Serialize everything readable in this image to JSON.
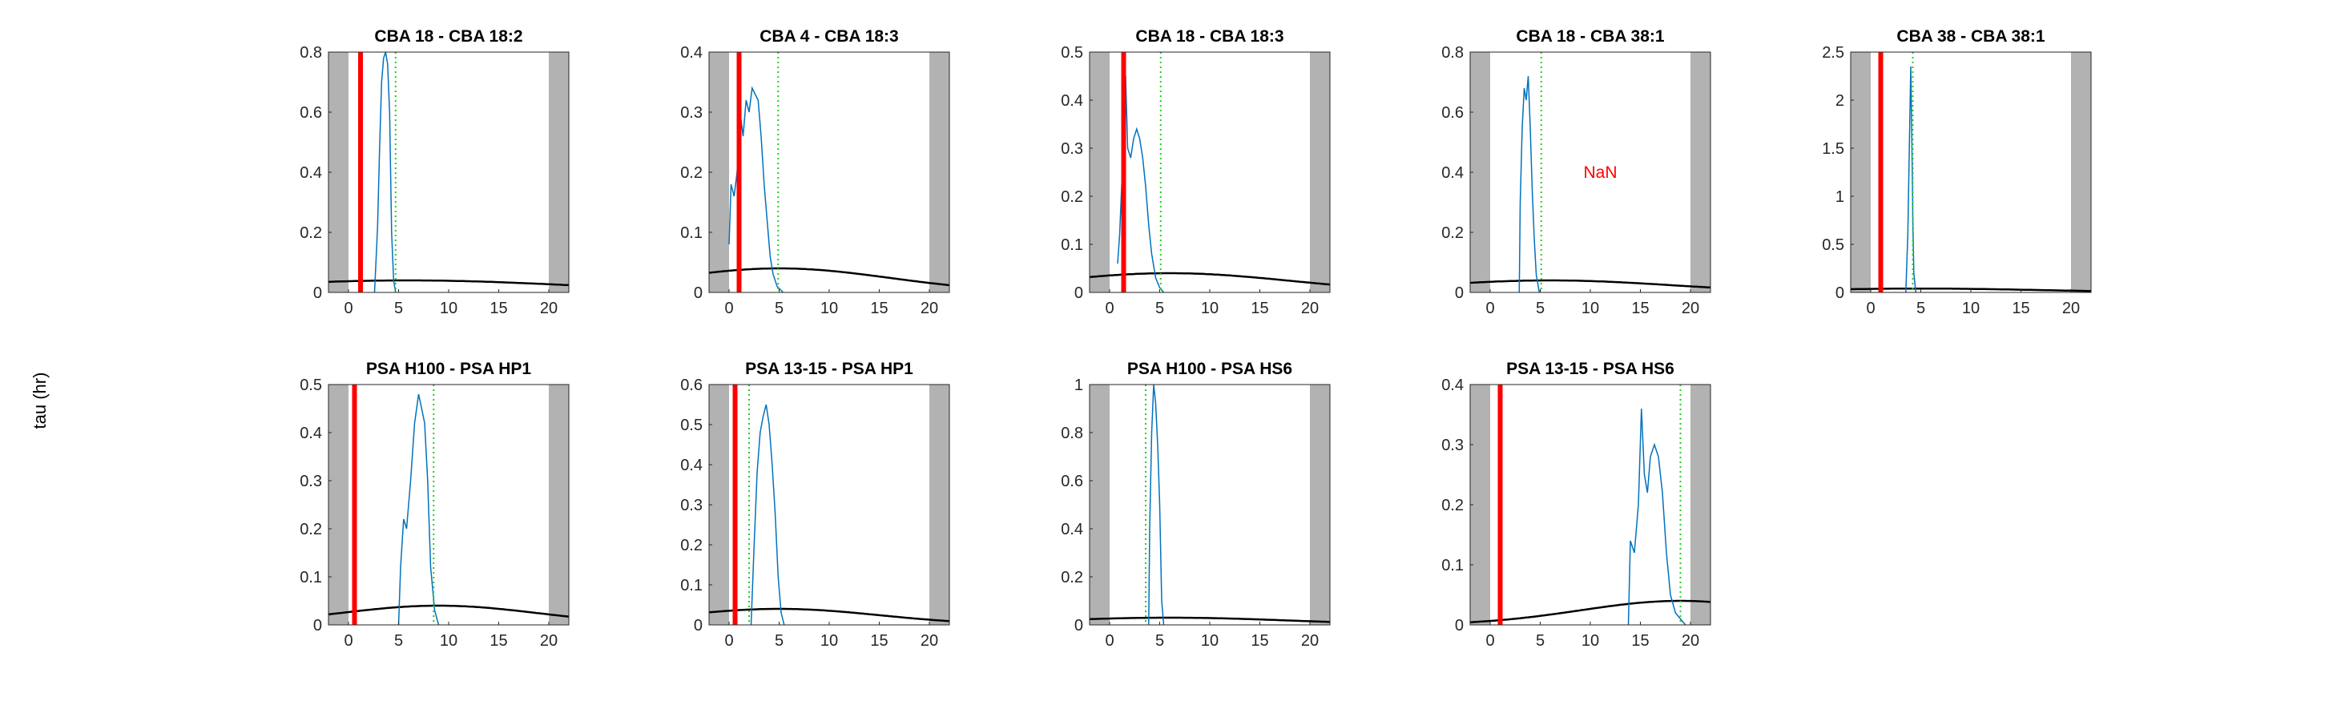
{
  "figure": {
    "ylabel": "tau (hr)"
  },
  "chart_data": [
    {
      "type": "line",
      "title": "CBA 18 - CBA 18:2",
      "xlim": [
        -2,
        22
      ],
      "ylim": [
        0,
        0.8
      ],
      "xticks": [
        0,
        5,
        10,
        15,
        20
      ],
      "xtick_labels": [
        "0",
        "5",
        "10",
        "15",
        "20"
      ],
      "yticks": [
        0,
        0.2,
        0.4,
        0.6,
        0.8
      ],
      "ytick_labels": [
        "0",
        "0.2",
        "0.4",
        "0.6",
        "0.8"
      ],
      "shaded_x": [
        [
          -2,
          0
        ],
        [
          20,
          22
        ]
      ],
      "red_line_x": 1.2,
      "green_dotted_x": 4.7,
      "annotation": "",
      "curve_points": [
        [
          2.6,
          0
        ],
        [
          2.9,
          0.22
        ],
        [
          3.1,
          0.48
        ],
        [
          3.3,
          0.7
        ],
        [
          3.5,
          0.78
        ],
        [
          3.7,
          0.8
        ],
        [
          3.9,
          0.76
        ],
        [
          4.1,
          0.6
        ],
        [
          4.3,
          0.2
        ],
        [
          4.5,
          0.04
        ],
        [
          4.7,
          0
        ]
      ],
      "black_curve": {
        "center": 6,
        "peak": 0.04,
        "sigma": 16
      }
    },
    {
      "type": "line",
      "title": "CBA 4 - CBA 18:3",
      "xlim": [
        -2,
        22
      ],
      "ylim": [
        0,
        0.4
      ],
      "xticks": [
        0,
        5,
        10,
        15,
        20
      ],
      "xtick_labels": [
        "0",
        "5",
        "10",
        "15",
        "20"
      ],
      "yticks": [
        0,
        0.1,
        0.2,
        0.3,
        0.4
      ],
      "ytick_labels": [
        "0",
        "0.1",
        "0.2",
        "0.3",
        "0.4"
      ],
      "shaded_x": [
        [
          -2,
          0
        ],
        [
          20,
          22
        ]
      ],
      "red_line_x": 1.0,
      "green_dotted_x": 4.9,
      "annotation": "",
      "curve_points": [
        [
          0,
          0.08
        ],
        [
          0.2,
          0.18
        ],
        [
          0.5,
          0.16
        ],
        [
          0.8,
          0.2
        ],
        [
          1.1,
          0.3
        ],
        [
          1.4,
          0.26
        ],
        [
          1.7,
          0.32
        ],
        [
          2.0,
          0.3
        ],
        [
          2.3,
          0.34
        ],
        [
          2.6,
          0.33
        ],
        [
          2.9,
          0.32
        ],
        [
          3.2,
          0.26
        ],
        [
          3.5,
          0.18
        ],
        [
          3.8,
          0.12
        ],
        [
          4.1,
          0.06
        ],
        [
          4.4,
          0.03
        ],
        [
          4.8,
          0.01
        ],
        [
          5.4,
          0
        ]
      ],
      "black_curve": {
        "center": 5,
        "peak": 0.04,
        "sigma": 11
      }
    },
    {
      "type": "line",
      "title": "CBA 18 - CBA 18:3",
      "xlim": [
        -2,
        22
      ],
      "ylim": [
        0,
        0.5
      ],
      "xticks": [
        0,
        5,
        10,
        15,
        20
      ],
      "xtick_labels": [
        "0",
        "5",
        "10",
        "15",
        "20"
      ],
      "yticks": [
        0,
        0.1,
        0.2,
        0.3,
        0.4,
        0.5
      ],
      "ytick_labels": [
        "0",
        "0.1",
        "0.2",
        "0.3",
        "0.4",
        "0.5"
      ],
      "shaded_x": [
        [
          -2,
          0
        ],
        [
          20,
          22
        ]
      ],
      "red_line_x": 1.4,
      "green_dotted_x": 5.1,
      "annotation": "",
      "curve_points": [
        [
          0.8,
          0.06
        ],
        [
          1.0,
          0.12
        ],
        [
          1.2,
          0.22
        ],
        [
          1.4,
          0.32
        ],
        [
          1.6,
          0.45
        ],
        [
          1.8,
          0.3
        ],
        [
          2.1,
          0.28
        ],
        [
          2.4,
          0.32
        ],
        [
          2.7,
          0.34
        ],
        [
          3.0,
          0.32
        ],
        [
          3.3,
          0.28
        ],
        [
          3.6,
          0.22
        ],
        [
          3.9,
          0.14
        ],
        [
          4.2,
          0.08
        ],
        [
          4.6,
          0.03
        ],
        [
          5.0,
          0.01
        ],
        [
          5.4,
          0
        ]
      ],
      "black_curve": {
        "center": 6,
        "peak": 0.04,
        "sigma": 12
      }
    },
    {
      "type": "line",
      "title": "CBA 18 - CBA 38:1",
      "xlim": [
        -2,
        22
      ],
      "ylim": [
        0,
        0.8
      ],
      "xticks": [
        0,
        5,
        10,
        15,
        20
      ],
      "xtick_labels": [
        "0",
        "5",
        "10",
        "15",
        "20"
      ],
      "yticks": [
        0,
        0.2,
        0.4,
        0.6,
        0.8
      ],
      "ytick_labels": [
        "0",
        "0.2",
        "0.4",
        "0.6",
        "0.8"
      ],
      "shaded_x": [
        [
          -2,
          0
        ],
        [
          20,
          22
        ]
      ],
      "red_line_x": null,
      "green_dotted_x": 5.1,
      "annotation": "NaN",
      "annotation_at": [
        11,
        0.4
      ],
      "curve_points": [
        [
          2.9,
          0
        ],
        [
          3.0,
          0.3
        ],
        [
          3.2,
          0.55
        ],
        [
          3.4,
          0.68
        ],
        [
          3.6,
          0.64
        ],
        [
          3.8,
          0.72
        ],
        [
          4.0,
          0.55
        ],
        [
          4.2,
          0.34
        ],
        [
          4.4,
          0.18
        ],
        [
          4.6,
          0.06
        ],
        [
          4.9,
          0
        ]
      ],
      "black_curve": {
        "center": 6,
        "peak": 0.04,
        "sigma": 12
      }
    },
    {
      "type": "line",
      "title": "CBA 38 - CBA 38:1",
      "xlim": [
        -2,
        22
      ],
      "ylim": [
        0,
        2.5
      ],
      "xticks": [
        0,
        5,
        10,
        15,
        20
      ],
      "xtick_labels": [
        "0",
        "5",
        "10",
        "15",
        "20"
      ],
      "yticks": [
        0,
        0.5,
        1,
        1.5,
        2,
        2.5
      ],
      "ytick_labels": [
        "0",
        "0.5",
        "1",
        "1.5",
        "2",
        "2.5"
      ],
      "shaded_x": [
        [
          -2,
          0
        ],
        [
          20,
          22
        ]
      ],
      "red_line_x": 1.0,
      "green_dotted_x": 4.2,
      "annotation": "",
      "curve_points": [
        [
          3.5,
          0
        ],
        [
          3.7,
          0.6
        ],
        [
          3.9,
          1.8
        ],
        [
          4.0,
          2.35
        ],
        [
          4.1,
          1.6
        ],
        [
          4.2,
          0.8
        ],
        [
          4.3,
          0.2
        ],
        [
          4.5,
          0
        ]
      ],
      "black_curve": {
        "center": 5,
        "peak": 0.04,
        "sigma": 12
      }
    },
    {
      "type": "line",
      "title": "PSA H100 - PSA HP1",
      "xlim": [
        -2,
        22
      ],
      "ylim": [
        0,
        0.5
      ],
      "xticks": [
        0,
        5,
        10,
        15,
        20
      ],
      "xtick_labels": [
        "0",
        "5",
        "10",
        "15",
        "20"
      ],
      "yticks": [
        0,
        0.1,
        0.2,
        0.3,
        0.4,
        0.5
      ],
      "ytick_labels": [
        "0",
        "0.1",
        "0.2",
        "0.3",
        "0.4",
        "0.5"
      ],
      "shaded_x": [
        [
          -2,
          0
        ],
        [
          20,
          22
        ]
      ],
      "red_line_x": 0.6,
      "green_dotted_x": 8.5,
      "annotation": "",
      "curve_points": [
        [
          5.0,
          0
        ],
        [
          5.2,
          0.12
        ],
        [
          5.5,
          0.22
        ],
        [
          5.8,
          0.2
        ],
        [
          6.2,
          0.3
        ],
        [
          6.6,
          0.42
        ],
        [
          7.0,
          0.48
        ],
        [
          7.3,
          0.45
        ],
        [
          7.6,
          0.42
        ],
        [
          7.9,
          0.3
        ],
        [
          8.2,
          0.12
        ],
        [
          8.6,
          0.03
        ],
        [
          9.0,
          0
        ]
      ],
      "black_curve": {
        "center": 9,
        "peak": 0.04,
        "sigma": 10
      }
    },
    {
      "type": "line",
      "title": "PSA 13-15 - PSA HP1",
      "xlim": [
        -2,
        22
      ],
      "ylim": [
        0,
        0.6
      ],
      "xticks": [
        0,
        5,
        10,
        15,
        20
      ],
      "xtick_labels": [
        "0",
        "5",
        "10",
        "15",
        "20"
      ],
      "yticks": [
        0,
        0.1,
        0.2,
        0.3,
        0.4,
        0.5,
        0.6
      ],
      "ytick_labels": [
        "0",
        "0.1",
        "0.2",
        "0.3",
        "0.4",
        "0.5",
        "0.6"
      ],
      "shaded_x": [
        [
          -2,
          0
        ],
        [
          20,
          22
        ]
      ],
      "red_line_x": 0.6,
      "green_dotted_x": 2.0,
      "annotation": "",
      "curve_points": [
        [
          2.2,
          0
        ],
        [
          2.5,
          0.2
        ],
        [
          2.8,
          0.38
        ],
        [
          3.1,
          0.48
        ],
        [
          3.4,
          0.52
        ],
        [
          3.7,
          0.55
        ],
        [
          4.0,
          0.5
        ],
        [
          4.3,
          0.4
        ],
        [
          4.6,
          0.28
        ],
        [
          4.9,
          0.12
        ],
        [
          5.2,
          0.03
        ],
        [
          5.5,
          0
        ]
      ],
      "black_curve": {
        "center": 5,
        "peak": 0.04,
        "sigma": 10
      }
    },
    {
      "type": "line",
      "title": "PSA H100 - PSA HS6",
      "xlim": [
        -2,
        22
      ],
      "ylim": [
        0,
        1
      ],
      "xticks": [
        0,
        5,
        10,
        15,
        20
      ],
      "xtick_labels": [
        "0",
        "5",
        "10",
        "15",
        "20"
      ],
      "yticks": [
        0,
        0.2,
        0.4,
        0.6,
        0.8,
        1
      ],
      "ytick_labels": [
        "0",
        "0.2",
        "0.4",
        "0.6",
        "0.8",
        "1"
      ],
      "shaded_x": [
        [
          -2,
          0
        ],
        [
          20,
          22
        ]
      ],
      "red_line_x": null,
      "green_dotted_x": 3.6,
      "annotation": "",
      "curve_points": [
        [
          3.9,
          0
        ],
        [
          4.0,
          0.4
        ],
        [
          4.2,
          0.8
        ],
        [
          4.4,
          1.0
        ],
        [
          4.6,
          0.92
        ],
        [
          4.8,
          0.75
        ],
        [
          5.0,
          0.5
        ],
        [
          5.2,
          0.1
        ],
        [
          5.4,
          0
        ]
      ],
      "black_curve": {
        "center": 6,
        "peak": 0.03,
        "sigma": 12
      }
    },
    {
      "type": "line",
      "title": "PSA 13-15 - PSA HS6",
      "xlim": [
        -2,
        22
      ],
      "ylim": [
        0,
        0.4
      ],
      "xticks": [
        0,
        5,
        10,
        15,
        20
      ],
      "xtick_labels": [
        "0",
        "5",
        "10",
        "15",
        "20"
      ],
      "yticks": [
        0,
        0.1,
        0.2,
        0.3,
        0.4
      ],
      "ytick_labels": [
        "0",
        "0.1",
        "0.2",
        "0.3",
        "0.4"
      ],
      "shaded_x": [
        [
          -2,
          0
        ],
        [
          20,
          22
        ]
      ],
      "red_line_x": 1.0,
      "green_dotted_x": 19.0,
      "annotation": "",
      "curve_points": [
        [
          13.8,
          0
        ],
        [
          14.0,
          0.14
        ],
        [
          14.4,
          0.12
        ],
        [
          14.8,
          0.2
        ],
        [
          15.1,
          0.36
        ],
        [
          15.4,
          0.25
        ],
        [
          15.7,
          0.22
        ],
        [
          16.0,
          0.28
        ],
        [
          16.4,
          0.3
        ],
        [
          16.8,
          0.28
        ],
        [
          17.2,
          0.22
        ],
        [
          17.6,
          0.12
        ],
        [
          18.0,
          0.05
        ],
        [
          18.5,
          0.02
        ],
        [
          19.0,
          0.01
        ],
        [
          19.5,
          0
        ]
      ],
      "black_curve": {
        "center": 19,
        "peak": 0.04,
        "sigma": 10
      }
    }
  ]
}
